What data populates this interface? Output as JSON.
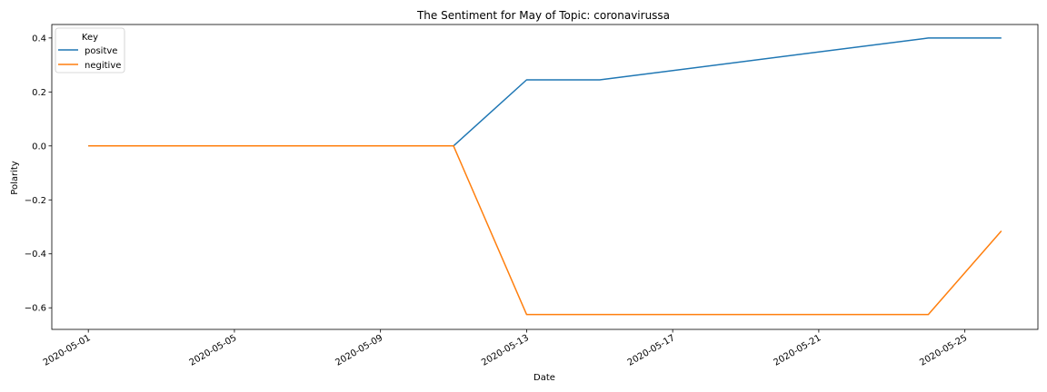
{
  "chart_data": {
    "type": "line",
    "title": "The Sentiment for May of Topic: coronavirussa",
    "xlabel": "Date",
    "ylabel": "Polarity",
    "xlim": [
      "2020-04-30",
      "2020-05-27"
    ],
    "ylim": [
      -0.68,
      0.45
    ],
    "x_ticks": [
      "2020-05-01",
      "2020-05-05",
      "2020-05-09",
      "2020-05-13",
      "2020-05-17",
      "2020-05-21",
      "2020-05-25"
    ],
    "y_ticks": [
      0.4,
      0.2,
      0.0,
      -0.2,
      -0.4,
      -0.6
    ],
    "y_tick_labels": [
      "0.4",
      "0.2",
      "0.0",
      "−0.2",
      "−0.4",
      "−0.6"
    ],
    "grid": false,
    "legend": {
      "title": "Key",
      "position": "top-left"
    },
    "series": [
      {
        "name": "positve",
        "color": "#1f77b4",
        "points": [
          {
            "x": "2020-05-01",
            "y": 0.0
          },
          {
            "x": "2020-05-11",
            "y": 0.0
          },
          {
            "x": "2020-05-13",
            "y": 0.245
          },
          {
            "x": "2020-05-15",
            "y": 0.245
          },
          {
            "x": "2020-05-24",
            "y": 0.4
          },
          {
            "x": "2020-05-26",
            "y": 0.4
          }
        ]
      },
      {
        "name": "negitive",
        "color": "#ff7f0e",
        "points": [
          {
            "x": "2020-05-01",
            "y": 0.0
          },
          {
            "x": "2020-05-11",
            "y": 0.0
          },
          {
            "x": "2020-05-13",
            "y": -0.625
          },
          {
            "x": "2020-05-24",
            "y": -0.625
          },
          {
            "x": "2020-05-26",
            "y": -0.315
          }
        ]
      }
    ]
  }
}
